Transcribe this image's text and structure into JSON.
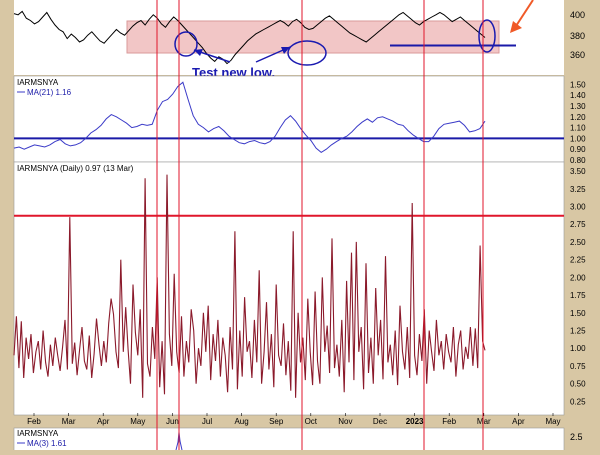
{
  "colors": {
    "frame_bg": "#d8c7a4",
    "panel_bg": "#ffffff",
    "price": "#000000",
    "ma21": "#3b3bc8",
    "arms": "#8b1a2b",
    "ma3": "#3b3bc8",
    "guide": "#e0162b",
    "threshold": "#e0162b",
    "one_line": "#1a1aa8",
    "annotation": "#1a1ab0",
    "support_band": "#f2c6c6",
    "arrow": "#f05a28"
  },
  "price_panel": {
    "y_ticks": [
      "400",
      "380",
      "360"
    ],
    "annotation_text": "Test new low."
  },
  "ma21_panel": {
    "label": "IARMSNYA",
    "legend": "MA(21) 1.16",
    "y_ticks": [
      "1.50",
      "1.40",
      "1.30",
      "1.20",
      "1.10",
      "1.00",
      "0.90",
      "0.80"
    ]
  },
  "arms_panel": {
    "label": "IARMSNYA (Daily) 0.97 (13 Mar)",
    "y_ticks": [
      "3.50",
      "3.25",
      "3.00",
      "2.75",
      "2.50",
      "2.25",
      "2.00",
      "1.75",
      "1.50",
      "1.25",
      "1.00",
      "0.75",
      "0.50",
      "0.25"
    ]
  },
  "x_axis": {
    "labels": [
      "Feb",
      "Mar",
      "Apr",
      "May",
      "Jun",
      "Jul",
      "Aug",
      "Sep",
      "Oct",
      "Nov",
      "Dec",
      "2023",
      "Feb",
      "Mar",
      "Apr",
      "May"
    ]
  },
  "ma3_panel": {
    "label": "IARMSNYA",
    "legend": "MA(3) 1.61",
    "y_ticks": [
      "2.5"
    ]
  },
  "chart_data": {
    "type": "line",
    "panels": [
      {
        "name": "price",
        "series": [
          {
            "values": [
              404,
              403,
              406,
              400,
              398,
              395,
              397,
              401,
              405,
              399,
              394,
              390,
              388,
              382,
              386,
              383,
              379,
              381,
              385,
              388,
              384,
              380,
              378,
              382,
              386,
              390,
              387,
              385,
              389,
              393,
              396,
              398,
              394,
              399,
              403,
              400,
              395,
              392,
              397,
              401,
              398,
              394,
              390,
              386,
              382,
              378,
              374,
              369,
              365,
              362,
              366,
              364,
              360,
              363,
              368,
              372,
              376,
              380,
              383,
              386,
              388,
              390,
              392,
              394,
              396,
              398,
              396,
              393,
              397,
              399,
              396,
              392,
              390,
              391,
              394,
              397,
              400,
              402,
              399,
              396,
              393,
              390,
              387,
              385,
              383,
              381,
              379,
              382,
              385,
              388,
              391,
              394,
              397,
              400,
              403,
              405,
              402,
              399,
              396,
              394,
              397,
              399,
              401,
              403,
              405,
              403,
              400,
              397,
              399,
              401,
              398,
              395,
              392,
              389,
              386,
              383
            ]
          }
        ],
        "ylim": [
          350,
          416
        ],
        "support_level": 376
      },
      {
        "name": "MA(21)",
        "series": [
          {
            "name": "MA(21) 1.16",
            "values": [
              0.91,
              0.92,
              0.9,
              0.92,
              0.94,
              0.93,
              0.92,
              0.94,
              0.97,
              0.99,
              0.95,
              0.93,
              0.94,
              0.96,
              1.0,
              1.05,
              1.08,
              1.12,
              1.18,
              1.22,
              1.2,
              1.17,
              1.14,
              1.1,
              1.11,
              1.13,
              1.12,
              1.13,
              1.26,
              1.34,
              1.36,
              1.41,
              1.48,
              1.52,
              1.36,
              1.21,
              1.13,
              1.1,
              1.06,
              1.09,
              1.11,
              1.07,
              1.02,
              0.99,
              0.96,
              0.95,
              0.97,
              0.98,
              0.96,
              0.95,
              0.97,
              1.02,
              1.1,
              1.17,
              1.21,
              1.16,
              1.09,
              1.03,
              0.98,
              0.91,
              0.87,
              0.9,
              0.94,
              0.97,
              1.0,
              1.02,
              1.06,
              1.11,
              1.15,
              1.18,
              1.15,
              1.19,
              1.2,
              1.18,
              1.16,
              1.13,
              1.12,
              1.07,
              1.03,
              1.0,
              0.97,
              0.97,
              1.02,
              1.09,
              1.13,
              1.14,
              1.15,
              1.16,
              1.12,
              1.06,
              1.07,
              1.09,
              1.16
            ]
          }
        ],
        "reference_line": 1.0,
        "ylim": [
          0.8,
          1.54
        ]
      },
      {
        "name": "IARMSNYA (Daily)",
        "series": [
          {
            "name": "IARMSNYA (Daily) 0.97",
            "values": [
              0.9,
              1.45,
              0.72,
              1.38,
              0.58,
              1.15,
              0.85,
              1.2,
              0.65,
              0.95,
              1.1,
              0.7,
              1.25,
              0.8,
              0.6,
              1.05,
              0.75,
              1.15,
              0.9,
              0.68,
              1.02,
              1.4,
              0.7,
              2.85,
              0.78,
              1.08,
              0.62,
              0.98,
              1.3,
              0.82,
              0.7,
              1.18,
              0.58,
              0.92,
              1.42,
              1.05,
              0.75,
              1.1,
              0.8,
              1.35,
              1.7,
              1.48,
              0.95,
              0.72,
              2.25,
              0.95,
              1.58,
              0.98,
              0.5,
              1.9,
              1.22,
              0.9,
              1.55,
              0.3,
              3.4,
              0.78,
              0.6,
              1.3,
              0.85,
              2.0,
              0.45,
              1.1,
              0.35,
              3.45,
              1.2,
              0.75,
              2.05,
              0.95,
              0.65,
              1.45,
              0.6,
              1.1,
              0.8,
              1.55,
              1.25,
              0.5,
              1.0,
              0.75,
              1.5,
              0.95,
              1.6,
              0.55,
              1.2,
              0.82,
              1.4,
              0.6,
              1.15,
              0.9,
              0.38,
              1.3,
              0.7,
              2.65,
              0.42,
              1.25,
              0.6,
              1.72,
              0.95,
              1.1,
              0.58,
              1.4,
              0.8,
              2.1,
              0.5,
              0.95,
              1.65,
              0.7,
              1.2,
              0.45,
              1.9,
              0.9,
              0.75,
              1.35,
              0.62,
              1.1,
              0.4,
              2.65,
              0.3,
              1.5,
              0.8,
              1.15,
              0.55,
              1.7,
              0.95,
              0.48,
              1.8,
              0.82,
              0.5,
              2.0,
              0.95,
              1.32,
              0.65,
              2.55,
              0.72,
              1.05,
              0.6,
              1.4,
              0.38,
              1.95,
              0.8,
              2.35,
              0.55,
              2.5,
              0.95,
              1.3,
              0.42,
              2.2,
              0.65,
              1.15,
              0.5,
              1.85,
              0.9,
              1.4,
              0.56,
              2.3,
              0.8,
              1.05,
              0.62,
              1.25,
              0.48,
              1.6,
              0.95,
              0.7,
              1.3,
              0.58,
              3.05,
              0.9,
              0.62,
              1.2,
              0.82,
              1.55,
              0.5,
              1.25,
              0.95,
              0.68,
              1.4,
              0.9,
              1.1,
              0.7,
              1.2,
              0.95,
              0.8,
              1.3,
              0.6,
              1.05,
              1.25,
              0.7,
              1.02,
              0.85,
              1.3,
              0.75,
              1.28,
              0.72,
              2.45,
              1.1,
              0.97
            ]
          }
        ],
        "threshold_line": 2.87,
        "ylim": [
          0.1,
          3.6
        ]
      },
      {
        "name": "MA(3)",
        "series": [
          {
            "name": "MA(3) 1.61"
          }
        ]
      }
    ],
    "x_ticks": [
      "Feb",
      "Mar",
      "Apr",
      "May",
      "Jun",
      "Jul",
      "Aug",
      "Sep",
      "Oct",
      "Nov",
      "Dec",
      "2023",
      "Feb",
      "Mar",
      "Apr",
      "May"
    ],
    "vertical_marker_labels": [
      "May",
      "Jun",
      "Oct",
      "Jan",
      "Mar"
    ],
    "annotations": [
      "Test new low."
    ]
  }
}
